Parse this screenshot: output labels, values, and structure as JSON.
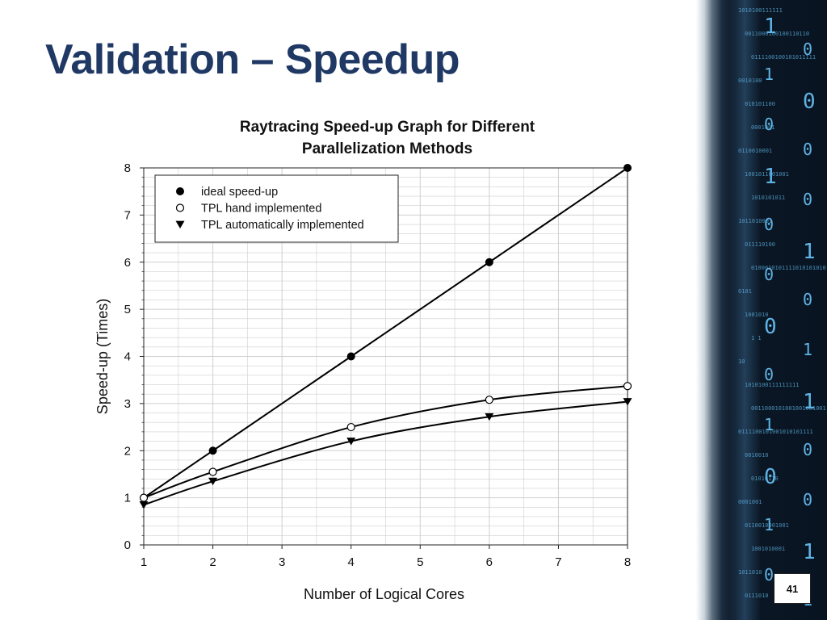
{
  "slide": {
    "title": "Validation – Speedup",
    "page_number": "41"
  },
  "colors": {
    "title": "#1f3864",
    "panel_background": "#0b1724",
    "panel_digits": "#5fb4e6",
    "gridline": "#cfcfcf",
    "series": "#000000"
  },
  "side_panel": {
    "binary_strings": [
      "1010100111111",
      "0011000100100110110",
      "0111100100101011111",
      "0010100",
      "010101100",
      "0001001",
      "0110010001",
      "1001011001001",
      "1010101011",
      "1011010001",
      "011110100",
      "0100010101111010101010",
      "0101",
      "1001010",
      "1 1",
      "10",
      "1010100111111111",
      "0011000101001001001001",
      "0111100101001010101111",
      "0010010",
      "01010110",
      "0001001",
      "0110010001001",
      "1001010001",
      "1011010",
      "0111010"
    ],
    "large_digits": [
      "1",
      "0",
      "1",
      "0",
      "0",
      "0",
      "1",
      "0",
      "0",
      "1",
      "0",
      "0",
      "0",
      "1",
      "0",
      "1",
      "1",
      "0",
      "0",
      "0",
      "1",
      "1",
      "0",
      "1"
    ]
  },
  "chart_data": {
    "type": "line",
    "title": "Raytracing Speed-up Graph for Different Parallelization Methods",
    "title_lines": [
      "Raytracing Speed-up Graph for Different",
      "Parallelization Methods"
    ],
    "xlabel": "Number of Logical Cores",
    "ylabel": "Speed-up (Times)",
    "x_ticks": [
      "1",
      "2",
      "3",
      "4",
      "5",
      "6",
      "7",
      "8"
    ],
    "x_tick_values": [
      1,
      2,
      3,
      4,
      5,
      6,
      7,
      8
    ],
    "y_ticks": [
      "0",
      "1",
      "2",
      "3",
      "4",
      "5",
      "6",
      "7",
      "8"
    ],
    "xlim": [
      1,
      8
    ],
    "ylim": [
      0,
      8
    ],
    "grid": true,
    "legend_position": "top-left",
    "series": [
      {
        "name": "ideal speed-up",
        "marker": "filled-circle",
        "x": [
          1,
          2,
          4,
          6,
          8
        ],
        "y": [
          1,
          2,
          4,
          6,
          8
        ]
      },
      {
        "name": "TPL hand implemented",
        "marker": "open-circle",
        "x": [
          1,
          2,
          4,
          6,
          8
        ],
        "y": [
          1.0,
          1.55,
          2.5,
          3.08,
          3.37
        ]
      },
      {
        "name": "TPL automatically implemented",
        "marker": "filled-triangle-down",
        "x": [
          1,
          2,
          4,
          6,
          8
        ],
        "y": [
          0.85,
          1.35,
          2.2,
          2.72,
          3.04
        ]
      }
    ]
  }
}
